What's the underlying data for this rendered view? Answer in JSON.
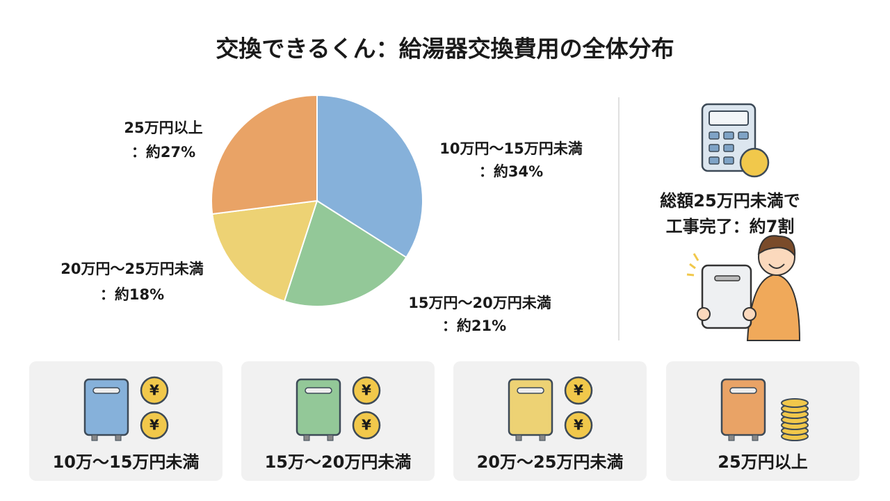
{
  "chart_data": {
    "type": "pie",
    "title": "交換できるくん：給湯器交換費用の全体分布",
    "categories": [
      "10万円～15万円未満",
      "15万円～20万円未満",
      "20万円～25万円未満",
      "25万円以上"
    ],
    "values": [
      34,
      21,
      18,
      27
    ],
    "value_labels": [
      "：約34%",
      "：約21%",
      "：約18%",
      "：約27%"
    ],
    "colors": [
      "#86b1da",
      "#93c898",
      "#edd274",
      "#e9a366"
    ]
  },
  "callout": {
    "lines": [
      "総額25万円未満で",
      "工事完了：約7割"
    ]
  },
  "coin_symbol": "¥",
  "cards": [
    "10万～15万円未満",
    "15万～20万円未満",
    "20万～25万円未満",
    "25万円以上"
  ]
}
